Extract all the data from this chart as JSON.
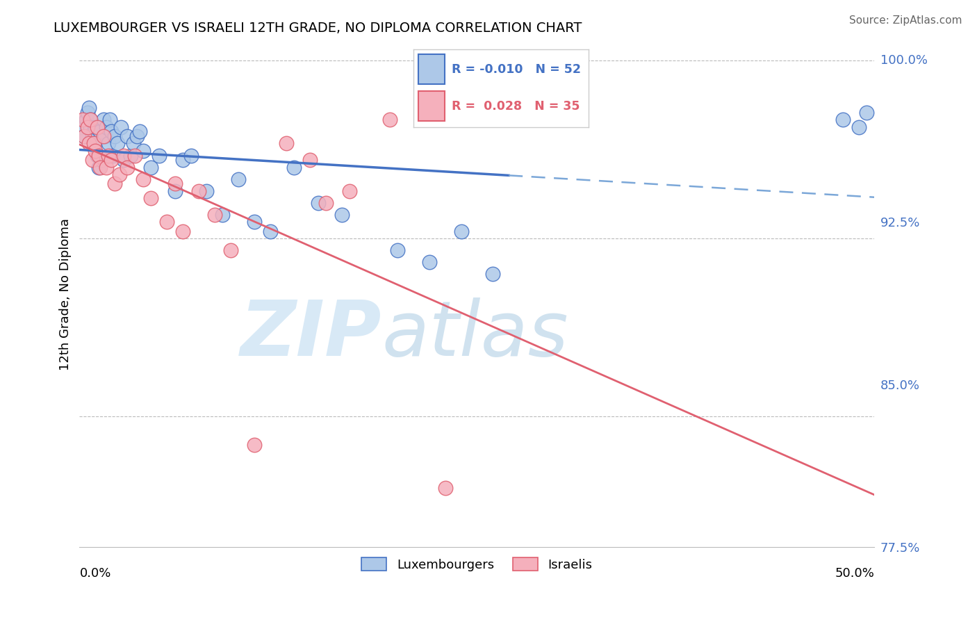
{
  "title": "LUXEMBOURGER VS ISRAELI 12TH GRADE, NO DIPLOMA CORRELATION CHART",
  "source": "Source: ZipAtlas.com",
  "ylabel": "12th Grade, No Diploma",
  "legend_lux": "Luxembourgers",
  "legend_isr": "Israelis",
  "r_lux": -0.01,
  "n_lux": 52,
  "r_isr": 0.028,
  "n_isr": 35,
  "xlim": [
    0.0,
    0.5
  ],
  "ylim": [
    0.795,
    1.008
  ],
  "yticks": [
    1.0,
    0.925,
    0.85,
    0.775
  ],
  "ytick_labels": [
    "100.0%",
    "92.5%",
    "85.0%",
    "77.5%"
  ],
  "color_lux": "#adc8e8",
  "color_lux_line": "#4472c4",
  "color_lux_line_dash": "#7ba7d8",
  "color_isr": "#f5b0bc",
  "color_isr_line": "#e06070",
  "watermark_zip": "ZIP",
  "watermark_atlas": "atlas",
  "background": "#ffffff",
  "lux_x": [
    0.002,
    0.003,
    0.004,
    0.005,
    0.006,
    0.007,
    0.007,
    0.008,
    0.009,
    0.01,
    0.01,
    0.011,
    0.012,
    0.013,
    0.014,
    0.015,
    0.016,
    0.017,
    0.018,
    0.019,
    0.02,
    0.021,
    0.022,
    0.024,
    0.026,
    0.028,
    0.03,
    0.032,
    0.034,
    0.036,
    0.038,
    0.04,
    0.045,
    0.05,
    0.06,
    0.065,
    0.07,
    0.08,
    0.09,
    0.1,
    0.11,
    0.12,
    0.135,
    0.15,
    0.165,
    0.2,
    0.22,
    0.24,
    0.26,
    0.48,
    0.49,
    0.495
  ],
  "lux_y": [
    0.972,
    0.968,
    0.975,
    0.978,
    0.98,
    0.975,
    0.972,
    0.968,
    0.97,
    0.965,
    0.972,
    0.96,
    0.955,
    0.97,
    0.958,
    0.975,
    0.968,
    0.972,
    0.965,
    0.975,
    0.97,
    0.96,
    0.968,
    0.965,
    0.972,
    0.958,
    0.968,
    0.96,
    0.965,
    0.968,
    0.97,
    0.962,
    0.955,
    0.96,
    0.945,
    0.958,
    0.96,
    0.945,
    0.935,
    0.95,
    0.932,
    0.928,
    0.955,
    0.94,
    0.935,
    0.92,
    0.915,
    0.928,
    0.91,
    0.975,
    0.972,
    0.978
  ],
  "isr_x": [
    0.002,
    0.003,
    0.005,
    0.006,
    0.007,
    0.008,
    0.009,
    0.01,
    0.011,
    0.012,
    0.013,
    0.015,
    0.017,
    0.018,
    0.02,
    0.022,
    0.025,
    0.028,
    0.03,
    0.035,
    0.04,
    0.045,
    0.055,
    0.06,
    0.065,
    0.075,
    0.085,
    0.095,
    0.11,
    0.13,
    0.145,
    0.155,
    0.17,
    0.195,
    0.23
  ],
  "isr_y": [
    0.975,
    0.968,
    0.972,
    0.965,
    0.975,
    0.958,
    0.965,
    0.962,
    0.972,
    0.96,
    0.955,
    0.968,
    0.955,
    0.96,
    0.958,
    0.948,
    0.952,
    0.96,
    0.955,
    0.96,
    0.95,
    0.942,
    0.932,
    0.948,
    0.928,
    0.945,
    0.935,
    0.92,
    0.838,
    0.965,
    0.958,
    0.94,
    0.945,
    0.975,
    0.82
  ]
}
